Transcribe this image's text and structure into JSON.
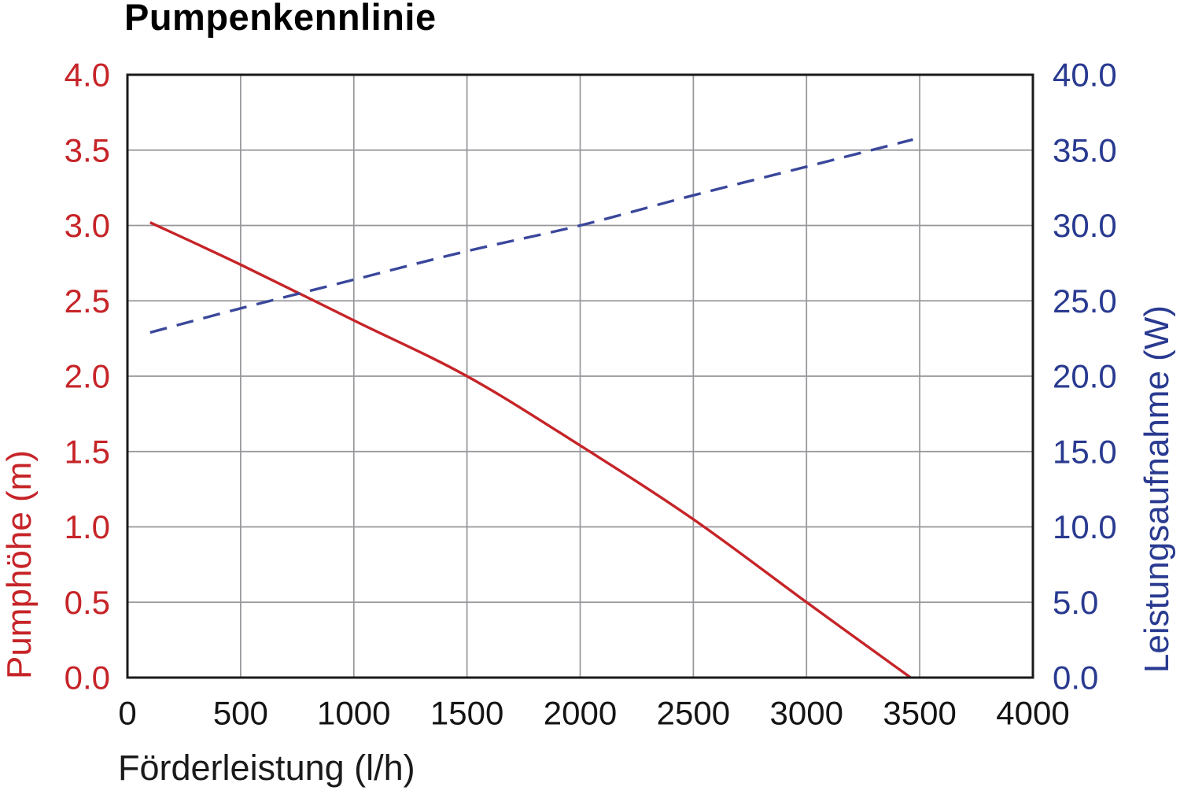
{
  "page": {
    "background": "#ffffff"
  },
  "chart_data": {
    "type": "line",
    "title": "Pumpenkennlinie",
    "xlabel": "Förderleistung (l/h)",
    "ylabel_left": "Pumphöhe (m)",
    "ylabel_right": "Leistungsaufnahme (W)",
    "xlim": [
      0,
      4000
    ],
    "ylim_left": [
      0,
      4.0
    ],
    "ylim_right": [
      0,
      40.0
    ],
    "grid": true,
    "legend": "none",
    "x_ticks": [
      0,
      500,
      1000,
      1500,
      2000,
      2500,
      3000,
      3500,
      4000
    ],
    "x_tick_labels": [
      "0",
      "500",
      "1000",
      "1500",
      "2000",
      "2500",
      "3000",
      "3500",
      "4000"
    ],
    "y_left_ticks": [
      0,
      0.5,
      1.0,
      1.5,
      2.0,
      2.5,
      3.0,
      3.5,
      4.0
    ],
    "y_left_tick_labels": [
      "0.0",
      "0.5",
      "1.0",
      "1.5",
      "2.0",
      "2.5",
      "3.0",
      "3.5",
      "4.0"
    ],
    "y_right_ticks": [
      0,
      5,
      10,
      15,
      20,
      25,
      30,
      35,
      40
    ],
    "y_right_tick_labels": [
      "0.0",
      "5.0",
      "10.0",
      "15.0",
      "20.0",
      "25.0",
      "30.0",
      "35.0",
      "40.0"
    ],
    "series": [
      {
        "name": "Pumphöhe",
        "axis": "left",
        "style": "solid",
        "color": "#c62428",
        "x": [
          100,
          500,
          1000,
          1500,
          2000,
          2500,
          3000,
          3460
        ],
        "y": [
          3.02,
          2.74,
          2.37,
          2.0,
          1.54,
          1.05,
          0.5,
          0.0
        ]
      },
      {
        "name": "Leistungsaufnahme",
        "axis": "right",
        "style": "dashed",
        "color": "#3a479c",
        "x": [
          100,
          500,
          1000,
          1500,
          2000,
          2500,
          3000,
          3470
        ],
        "y": [
          22.9,
          24.5,
          26.4,
          28.3,
          30.0,
          32.0,
          33.9,
          35.7
        ]
      }
    ],
    "colors": {
      "left_axis_text": "#c62428",
      "right_axis_text": "#293a90",
      "x_axis_text": "#141414",
      "grid": "#96969b",
      "border": "#1a1a1a",
      "title": "#000000"
    }
  }
}
